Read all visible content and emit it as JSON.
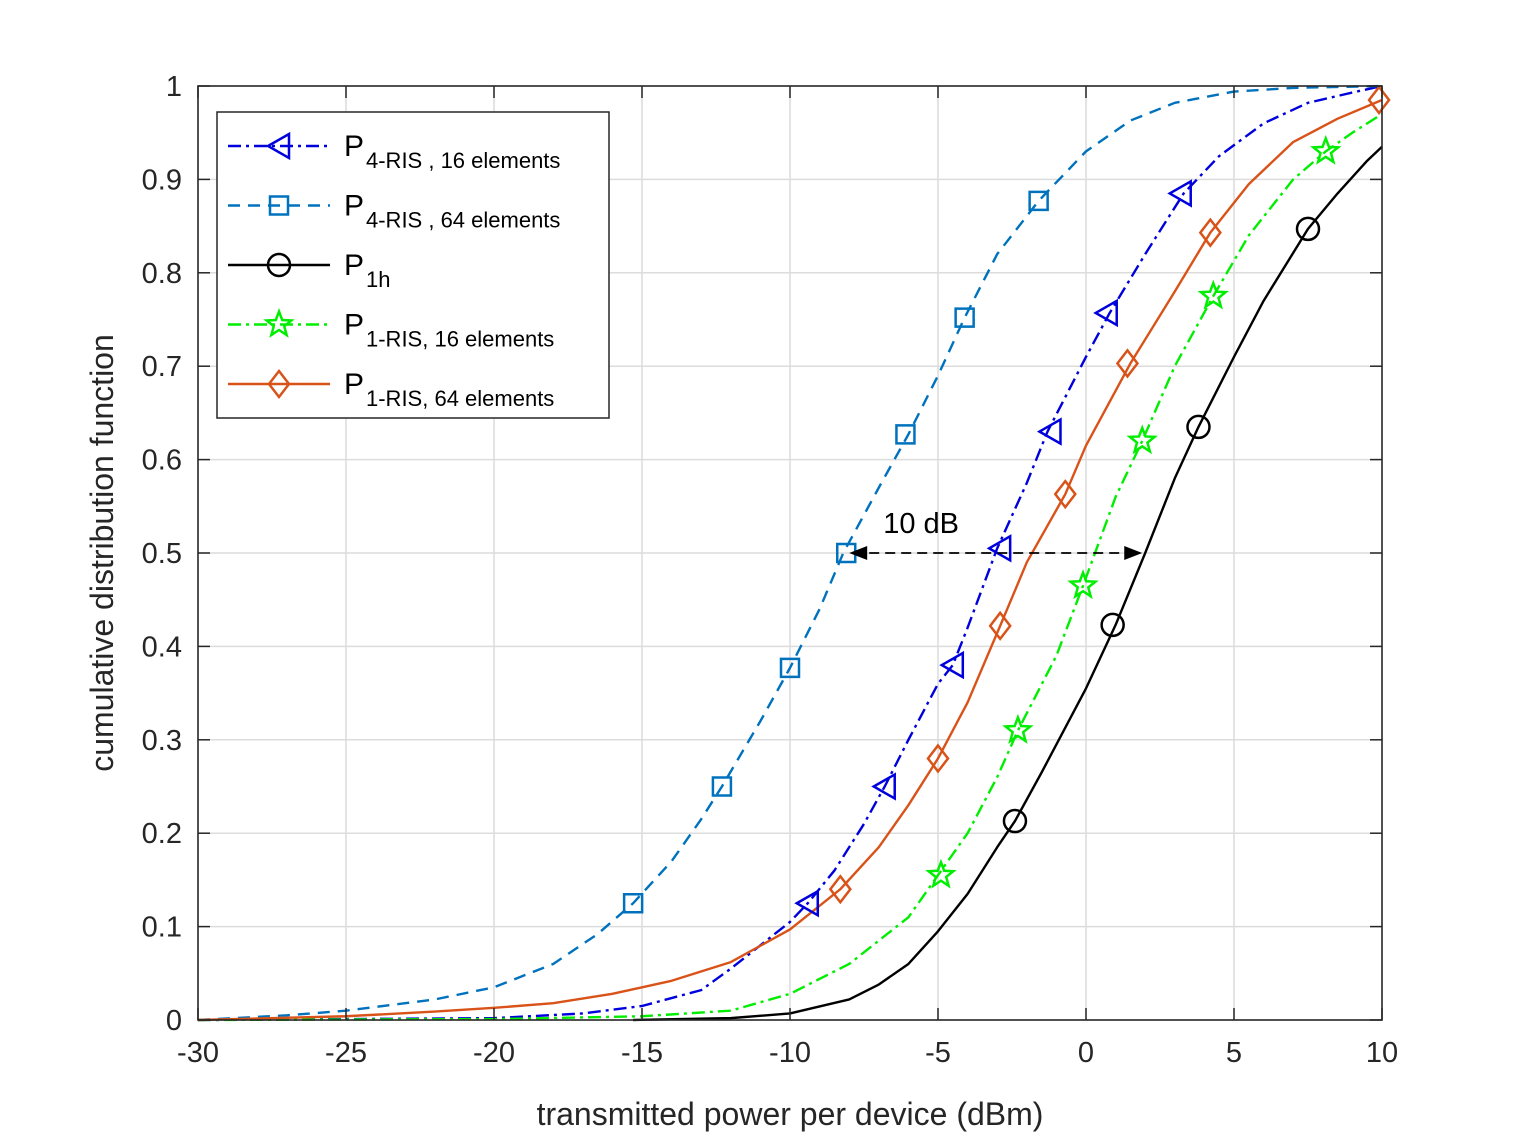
{
  "chart_data": {
    "type": "line",
    "xlabel": "transmitted power per device (dBm)",
    "ylabel": "cumulative distribution function",
    "xlim": [
      -30,
      10
    ],
    "ylim": [
      0,
      1
    ],
    "xticks": [
      -30,
      -25,
      -20,
      -15,
      -10,
      -5,
      0,
      5,
      10
    ],
    "yticks": [
      0,
      0.1,
      0.2,
      0.3,
      0.4,
      0.5,
      0.6,
      0.7,
      0.8,
      0.9,
      1
    ],
    "xtick_labels": [
      "-30",
      "-25",
      "-20",
      "-15",
      "-10",
      "-5",
      "0",
      "5",
      "10"
    ],
    "ytick_labels": [
      "0",
      "0.1",
      "0.2",
      "0.3",
      "0.4",
      "0.5",
      "0.6",
      "0.7",
      "0.8",
      "0.9",
      "1"
    ],
    "grid": true,
    "legend_position": "top-left",
    "series": [
      {
        "name": "P_{4-RIS , 16 elements}",
        "legend_main": "P",
        "legend_sub": "4-RIS , 16 elements",
        "color": "#0000dd",
        "dash": "dashdot",
        "marker": "triangle-left",
        "x": [
          -30,
          -20,
          -17,
          -15,
          -13,
          -12,
          -11,
          -10,
          -9.4,
          -8.5,
          -7.5,
          -6.8,
          -6,
          -5,
          -4.5,
          -4,
          -3,
          -2,
          -1.3,
          0,
          0.8,
          2,
          3.3,
          4.5,
          6,
          7.5,
          9,
          10
        ],
        "y": [
          0,
          0.002,
          0.007,
          0.015,
          0.032,
          0.055,
          0.08,
          0.105,
          0.125,
          0.16,
          0.21,
          0.25,
          0.3,
          0.36,
          0.38,
          0.42,
          0.505,
          0.575,
          0.63,
          0.71,
          0.757,
          0.82,
          0.885,
          0.925,
          0.96,
          0.982,
          0.993,
          1.0
        ],
        "marker_x": [
          -9.4,
          -6.8,
          -4.5,
          -2.9,
          -1.2,
          0.7,
          3.2
        ],
        "marker_y": [
          0.125,
          0.25,
          0.38,
          0.505,
          0.63,
          0.757,
          0.885
        ]
      },
      {
        "name": "P_{4-RIS , 64 elements}",
        "legend_main": "P",
        "legend_sub": "4-RIS , 64 elements",
        "color": "#0072BD",
        "dash": "dashed",
        "marker": "square",
        "x": [
          -30,
          -27,
          -25,
          -22,
          -20,
          -18,
          -16.5,
          -15.3,
          -14,
          -13,
          -12.3,
          -11,
          -10,
          -9,
          -8.2,
          -7,
          -6,
          -5,
          -4.1,
          -3,
          -1.6,
          0,
          1.5,
          3,
          5,
          7,
          10
        ],
        "y": [
          0,
          0.005,
          0.01,
          0.022,
          0.035,
          0.06,
          0.092,
          0.125,
          0.17,
          0.215,
          0.25,
          0.32,
          0.377,
          0.44,
          0.5,
          0.57,
          0.627,
          0.69,
          0.752,
          0.82,
          0.877,
          0.93,
          0.963,
          0.982,
          0.994,
          0.998,
          1.0
        ],
        "marker_x": [
          -15.3,
          -12.3,
          -10,
          -8.1,
          -6.1,
          -4.1,
          -1.6
        ],
        "marker_y": [
          0.125,
          0.25,
          0.377,
          0.5,
          0.627,
          0.752,
          0.877
        ]
      },
      {
        "name": "P_{1h}",
        "legend_main": "P",
        "legend_sub": "1h",
        "color": "#000000",
        "dash": "solid",
        "marker": "circle",
        "x": [
          -15.3,
          -12,
          -10,
          -8,
          -7,
          -6,
          -5,
          -4,
          -3,
          -2.4,
          -1.5,
          0,
          1,
          2,
          3,
          3.8,
          5,
          6,
          7.5,
          8.5,
          9.5,
          10
        ],
        "y": [
          0,
          0.002,
          0.007,
          0.022,
          0.038,
          0.06,
          0.095,
          0.135,
          0.185,
          0.213,
          0.265,
          0.355,
          0.423,
          0.5,
          0.58,
          0.635,
          0.71,
          0.77,
          0.847,
          0.885,
          0.92,
          0.935
        ],
        "marker_x": [
          -2.4,
          0.9,
          3.8,
          7.5
        ],
        "marker_y": [
          0.213,
          0.423,
          0.635,
          0.847
        ]
      },
      {
        "name": "P_{1-RIS, 16 elements}",
        "legend_main": "P",
        "legend_sub": "1-RIS, 16 elements",
        "color": "#00ee00",
        "dash": "dashdot",
        "marker": "star",
        "x": [
          -30,
          -20,
          -15,
          -12,
          -10,
          -8,
          -6,
          -5,
          -4,
          -3,
          -2.3,
          -1,
          -0.1,
          1,
          1.9,
          3,
          4.3,
          5.5,
          7,
          8.1,
          9,
          10
        ],
        "y": [
          0,
          0.001,
          0.004,
          0.01,
          0.028,
          0.06,
          0.11,
          0.155,
          0.2,
          0.26,
          0.31,
          0.39,
          0.465,
          0.56,
          0.62,
          0.7,
          0.775,
          0.84,
          0.9,
          0.93,
          0.95,
          0.97
        ],
        "marker_x": [
          -4.9,
          -2.3,
          -0.1,
          1.9,
          4.3,
          8.1
        ],
        "marker_y": [
          0.155,
          0.31,
          0.465,
          0.62,
          0.775,
          0.93
        ]
      },
      {
        "name": "P_{1-RIS, 64 elements}",
        "legend_main": "P",
        "legend_sub": "1-RIS, 64 elements",
        "color": "#D95319",
        "dash": "solid",
        "marker": "diamond",
        "x": [
          -30,
          -25,
          -22,
          -20,
          -18,
          -16,
          -14,
          -12,
          -10,
          -8.3,
          -7,
          -6,
          -5,
          -4,
          -2.9,
          -2,
          -0.7,
          0,
          1.5,
          3,
          4.2,
          5.5,
          7,
          8.5,
          10
        ],
        "y": [
          0,
          0.004,
          0.009,
          0.013,
          0.018,
          0.028,
          0.042,
          0.062,
          0.097,
          0.14,
          0.185,
          0.23,
          0.28,
          0.34,
          0.422,
          0.49,
          0.563,
          0.615,
          0.703,
          0.78,
          0.843,
          0.895,
          0.94,
          0.965,
          0.985
        ],
        "marker_x": [
          -8.3,
          -5,
          -2.9,
          -0.7,
          1.4,
          4.2,
          9.9
        ],
        "marker_y": [
          0.14,
          0.28,
          0.422,
          0.563,
          0.703,
          0.843,
          0.985
        ]
      }
    ],
    "annotations": [
      {
        "text": "10 dB",
        "x1": -8.0,
        "x2": 1.9,
        "y": 0.5
      }
    ]
  }
}
